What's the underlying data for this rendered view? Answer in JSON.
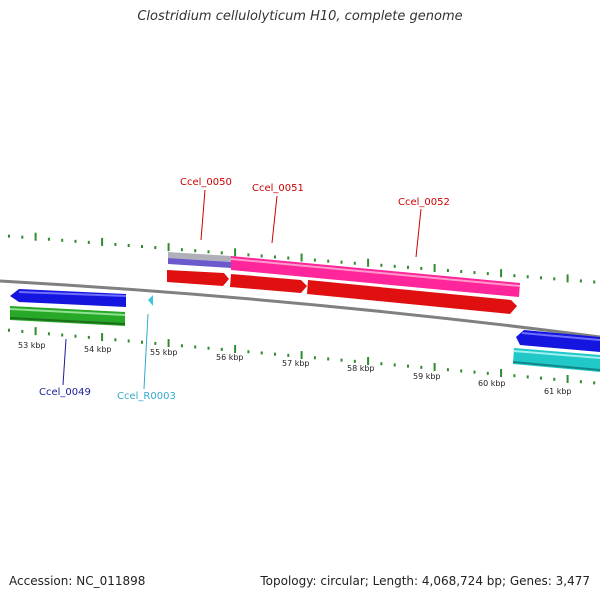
{
  "title": "Clostridium cellulolyticum H10, complete genome",
  "footer": {
    "accession": "Accession: NC_011898",
    "summary": "Topology: circular; Length: 4,068,724 bp; Genes: 3,477"
  },
  "colors": {
    "backbone": "#8a8a8a",
    "tick": "#2e8b2e",
    "label_red": "#cc0000",
    "label_blue": "#1a1a9a",
    "label_cyan": "#33aacc"
  },
  "scale_labels": [
    "53 kbp",
    "54 kbp",
    "55 kbp",
    "56 kbp",
    "57 kbp",
    "58 kbp",
    "59 kbp",
    "60 kbp",
    "61 kbp"
  ],
  "gene_labels": [
    {
      "id": "Ccel_0050",
      "name": "gene-label-ccel-0050"
    },
    {
      "id": "Ccel_0051",
      "name": "gene-label-ccel-0051"
    },
    {
      "id": "Ccel_0052",
      "name": "gene-label-ccel-0052"
    },
    {
      "id": "Ccel_0049",
      "name": "gene-label-ccel-0049"
    },
    {
      "id": "Ccel_R0003",
      "name": "gene-label-ccel-r0003"
    }
  ]
}
